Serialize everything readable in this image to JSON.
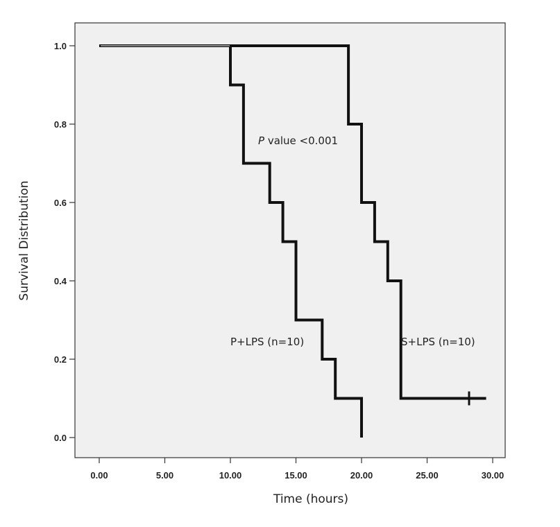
{
  "chart_data": {
    "type": "line",
    "title": "",
    "xlabel": "Time (hours)",
    "ylabel": "Survival Distribution",
    "xlim": [
      0,
      30
    ],
    "ylim": [
      0,
      1.0
    ],
    "x_ticks": [
      "0.00",
      "5.00",
      "10.00",
      "15.00",
      "20.00",
      "25.00",
      "30.00"
    ],
    "y_ticks": [
      "0.0",
      "0.2",
      "0.4",
      "0.6",
      "0.8",
      "1.0"
    ],
    "grid": false,
    "series": [
      {
        "name": "P+LPS (n=10)",
        "color": "#111111",
        "x": [
          0,
          10,
          11,
          13,
          14,
          15,
          17,
          18,
          20,
          20
        ],
        "y": [
          1.0,
          0.9,
          0.7,
          0.6,
          0.5,
          0.3,
          0.2,
          0.1,
          0.0,
          0.0
        ]
      },
      {
        "name": "S+LPS (n=10)",
        "color": "#111111",
        "x": [
          0,
          19,
          20,
          21,
          22,
          23,
          29.5
        ],
        "y": [
          1.0,
          0.8,
          0.6,
          0.5,
          0.4,
          0.1,
          0.1
        ],
        "censored": [
          [
            28.2,
            0.1
          ]
        ]
      }
    ],
    "annotations": {
      "p_italic": "P",
      "p_rest": " value <0.001"
    }
  }
}
